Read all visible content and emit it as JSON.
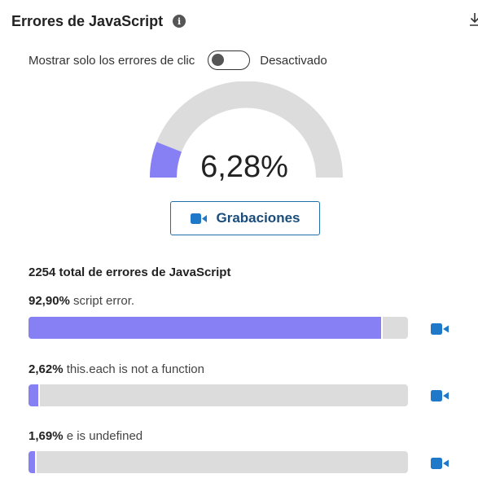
{
  "header": {
    "title": "Errores de JavaScript",
    "info_icon": "info-icon",
    "download_icon": "download-icon"
  },
  "toggle": {
    "label": "Mostrar solo los errores de clic",
    "state_label": "Desactivado",
    "on": false
  },
  "gauge": {
    "value_text": "6,28%",
    "value": 6.28,
    "fill_color": "#8780f5",
    "track_color": "#dcdcdc"
  },
  "recordings_button": {
    "label": "Grabaciones",
    "icon": "video-camera-icon",
    "color": "#1b4d7a"
  },
  "summary": {
    "total_text": "2254 total de errores de JavaScript"
  },
  "errors": [
    {
      "percent_text": "92,90%",
      "message": "script error.",
      "percent": 92.9
    },
    {
      "percent_text": "2,62%",
      "message": "this.each is not a function",
      "percent": 2.62
    },
    {
      "percent_text": "1,69%",
      "message": "e is undefined",
      "percent": 1.69
    }
  ],
  "colors": {
    "bar_fill": "#8780f5",
    "bar_track": "#dcdcdc",
    "accent_blue": "#1f78c8"
  }
}
